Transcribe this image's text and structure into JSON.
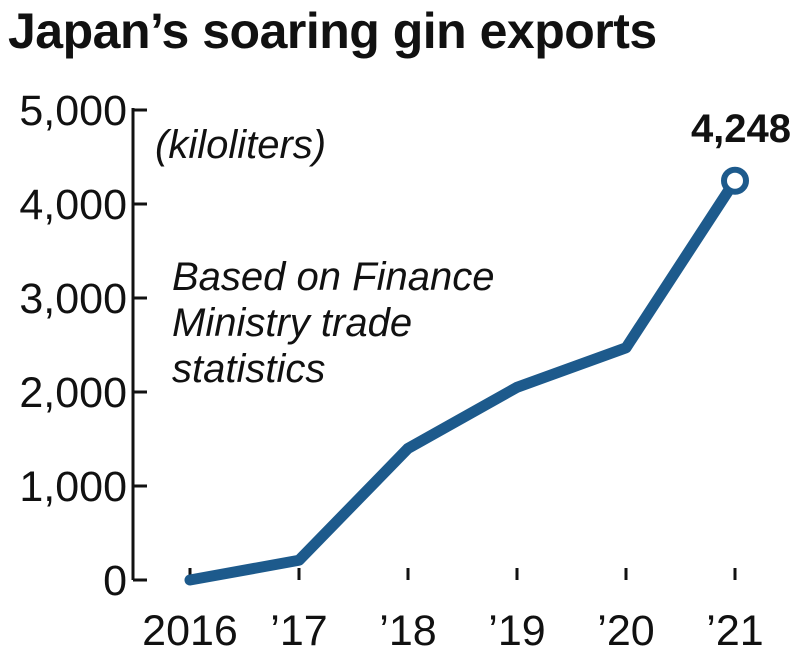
{
  "chart_data": {
    "type": "line",
    "title": "Japan’s soaring gin exports",
    "unit": "(kiloliters)",
    "note": [
      "Based on Finance",
      "Ministry trade",
      "statistics"
    ],
    "categories": [
      "2016",
      "’17",
      "’18",
      "’19",
      "’20",
      "’21"
    ],
    "values": [
      0,
      210,
      1400,
      2050,
      2470,
      4248
    ],
    "y_ticks": [
      "0",
      "1,000",
      "2,000",
      "3,000",
      "4,000",
      "5,000"
    ],
    "y_tick_values": [
      0,
      1000,
      2000,
      3000,
      4000,
      5000
    ],
    "ylim": [
      0,
      5000
    ],
    "highlight": {
      "index": 5,
      "label": "4,248"
    },
    "line_color": "#1d5a8c",
    "marker_fill": "#ffffff",
    "grid": false
  }
}
